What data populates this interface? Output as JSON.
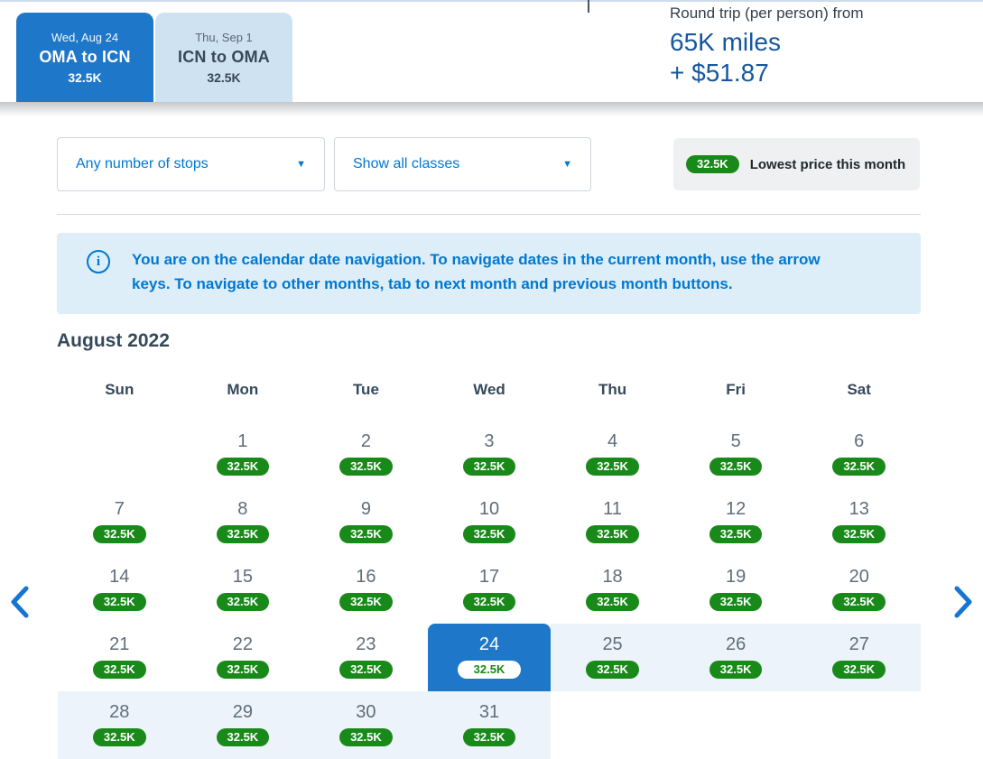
{
  "header": {
    "tabs": [
      {
        "date": "Wed, Aug 24",
        "route": "OMA to ICN",
        "price": "32.5K"
      },
      {
        "date": "Thu, Sep 1",
        "route": "ICN to OMA",
        "price": "32.5K"
      }
    ],
    "summary": {
      "label": "Round trip (per person) from",
      "miles": "65K miles",
      "fees": "+ $51.87"
    }
  },
  "filters": {
    "stops_dropdown": {
      "value": "Any number of stops"
    },
    "class_dropdown": {
      "value": "Show all classes"
    }
  },
  "legend": {
    "badge": "32.5K",
    "label": "Lowest price this month"
  },
  "banner": {
    "text": "You are on the calendar date navigation. To navigate dates in the current month, use the arrow keys. To navigate to other months, tab to next month and previous month buttons."
  },
  "calendar": {
    "month": "August 2022",
    "weekdays": [
      "Sun",
      "Mon",
      "Tue",
      "Wed",
      "Thu",
      "Fri",
      "Sat"
    ],
    "start_offset": 1,
    "days_in_month": 31,
    "day_price": "32.5K",
    "selected_day": 24,
    "range_days": [
      25,
      26,
      27,
      28,
      29,
      30,
      31
    ]
  },
  "icons": {
    "prev": "chevron-left",
    "next": "chevron-right",
    "info": "info-circle",
    "dropdown_caret": "caret-down"
  },
  "colors": {
    "selected_blue": "#1e77c8",
    "link_blue": "#0078d2",
    "price_green": "#198a19",
    "summary_navy": "#16579d",
    "range_highlight": "#edf3fa",
    "return_tab_bg": "#cfe2f1",
    "banner_bg": "#ddeef9",
    "legend_bg": "#eef0f1"
  }
}
